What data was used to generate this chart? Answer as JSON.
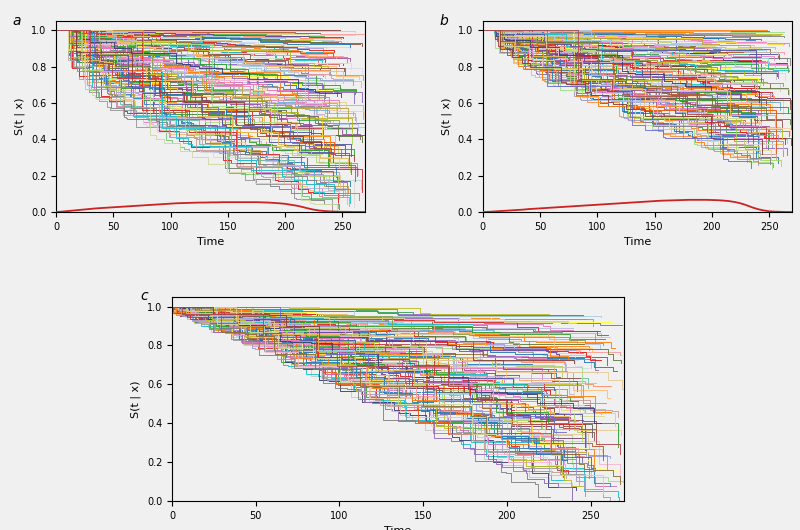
{
  "n_patients": 143,
  "time_max": 270,
  "brier_x_a": [
    0,
    5,
    10,
    15,
    20,
    25,
    30,
    35,
    40,
    45,
    50,
    55,
    60,
    65,
    70,
    75,
    80,
    85,
    90,
    95,
    100,
    105,
    110,
    115,
    120,
    125,
    130,
    135,
    140,
    145,
    150,
    155,
    160,
    165,
    170,
    175,
    180,
    185,
    190,
    195,
    200,
    205,
    210,
    215,
    220,
    225,
    230,
    235,
    240,
    245,
    250,
    255,
    260,
    265,
    270
  ],
  "brier_y_a": [
    0.0,
    0.002,
    0.005,
    0.008,
    0.011,
    0.014,
    0.017,
    0.02,
    0.022,
    0.024,
    0.026,
    0.028,
    0.03,
    0.032,
    0.034,
    0.036,
    0.038,
    0.04,
    0.042,
    0.044,
    0.046,
    0.048,
    0.049,
    0.05,
    0.051,
    0.052,
    0.052,
    0.053,
    0.053,
    0.054,
    0.054,
    0.054,
    0.054,
    0.054,
    0.054,
    0.054,
    0.053,
    0.052,
    0.05,
    0.048,
    0.045,
    0.04,
    0.035,
    0.028,
    0.02,
    0.013,
    0.008,
    0.005,
    0.003,
    0.002,
    0.001,
    0.001,
    0.0,
    0.0,
    0.0
  ],
  "brier_x_b": [
    0,
    5,
    10,
    15,
    20,
    25,
    30,
    35,
    40,
    45,
    50,
    55,
    60,
    65,
    70,
    75,
    80,
    85,
    90,
    95,
    100,
    105,
    110,
    115,
    120,
    125,
    130,
    135,
    140,
    145,
    150,
    155,
    160,
    165,
    170,
    175,
    180,
    185,
    190,
    195,
    200,
    205,
    210,
    215,
    220,
    225,
    230,
    235,
    240,
    245,
    250,
    255,
    260,
    265,
    270
  ],
  "brier_y_b": [
    0.0,
    0.001,
    0.003,
    0.005,
    0.007,
    0.009,
    0.011,
    0.013,
    0.016,
    0.018,
    0.02,
    0.022,
    0.024,
    0.026,
    0.028,
    0.03,
    0.032,
    0.034,
    0.036,
    0.038,
    0.04,
    0.042,
    0.044,
    0.046,
    0.048,
    0.05,
    0.052,
    0.054,
    0.056,
    0.058,
    0.06,
    0.062,
    0.063,
    0.064,
    0.065,
    0.066,
    0.067,
    0.067,
    0.067,
    0.067,
    0.066,
    0.065,
    0.063,
    0.06,
    0.055,
    0.048,
    0.038,
    0.026,
    0.016,
    0.009,
    0.004,
    0.002,
    0.001,
    0.0,
    0.0
  ],
  "subplot_a_label": "a",
  "subplot_b_label": "b",
  "subplot_c_label": "c",
  "ylabel": "S(t | x)",
  "xlabel": "Time",
  "xlim": [
    0,
    270
  ],
  "ylim": [
    0.0,
    1.05
  ],
  "xticks": [
    0,
    50,
    100,
    150,
    200,
    250
  ],
  "yticks": [
    0.0,
    0.2,
    0.4,
    0.6,
    0.8,
    1.0
  ],
  "brier_color": "#cc2222",
  "fig_facecolor": "#f0f0f0",
  "ax_facecolor": "#f0f0f0"
}
